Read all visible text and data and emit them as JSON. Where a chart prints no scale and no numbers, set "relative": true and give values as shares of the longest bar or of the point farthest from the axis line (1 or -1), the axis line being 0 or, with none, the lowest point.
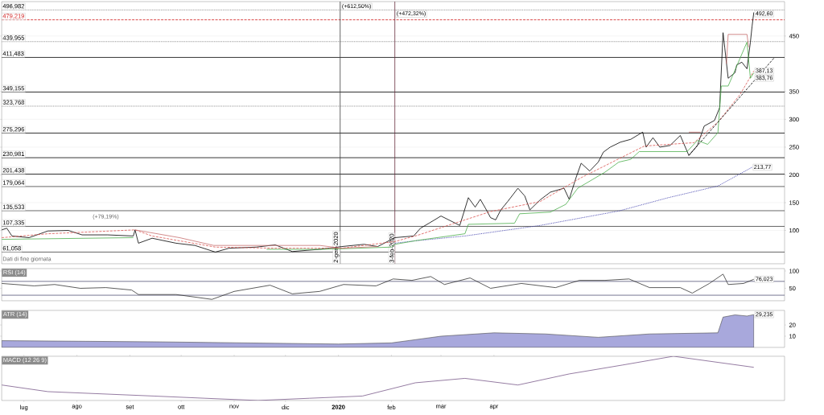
{
  "chart_data": [
    {
      "type": "line",
      "xlim": [
        "2019-06-18",
        "2020-09-18"
      ],
      "ylim": [
        40,
        512
      ],
      "yticks": [
        100,
        150,
        200,
        250,
        300,
        350,
        450
      ],
      "grid": "y",
      "tick_labels": "y",
      "series": [
        {
          "color": "#000000",
          "line_style": "solid",
          "x": [
            "2019-06-18",
            "2019-06-21",
            "2019-06-24",
            "2019-07-04",
            "2019-07-15",
            "2019-07-27",
            "2019-08-04",
            "2019-08-19",
            "2019-09-03",
            "2019-09-04",
            "2019-09-06",
            "2019-09-14",
            "2019-09-28",
            "2019-10-09",
            "2019-10-21",
            "2019-10-29",
            "2019-11-14",
            "2019-11-25",
            "2019-12-05",
            "2019-12-21",
            "2020-01-03",
            "2020-01-16",
            "2020-01-24",
            "2020-02-03",
            "2020-02-14",
            "2020-02-18",
            "2020-02-23",
            "2020-03-01",
            "2020-03-12",
            "2020-03-17",
            "2020-03-21",
            "2020-03-24",
            "2020-03-27",
            "2020-03-30",
            "2020-04-02",
            "2020-04-05",
            "2020-04-09",
            "2020-04-15",
            "2020-04-19",
            "2020-04-22",
            "2020-04-28",
            "2020-05-04",
            "2020-05-12",
            "2020-05-15",
            "2020-05-19",
            "2020-05-22",
            "2020-05-27",
            "2020-06-01",
            "2020-06-04",
            "2020-06-08",
            "2020-06-14",
            "2020-06-20",
            "2020-06-27",
            "2020-06-29",
            "2020-07-03",
            "2020-07-07",
            "2020-07-13",
            "2020-07-19",
            "2020-07-24",
            "2020-07-29",
            "2020-08-02",
            "2020-08-08",
            "2020-08-11",
            "2020-08-13",
            "2020-08-14",
            "2020-08-16",
            "2020-08-20",
            "2020-08-21",
            "2020-08-24",
            "2020-08-27",
            "2020-08-29",
            "2020-08-30",
            "2020-08-31"
          ],
          "values": [
            101,
            104,
            90,
            87,
            99,
            100,
            92,
            92,
            90,
            101,
            77,
            86,
            77,
            73,
            61,
            68,
            70,
            74,
            62,
            66,
            71,
            75,
            71,
            87,
            90,
            104,
            113,
            126,
            109,
            159,
            142,
            156,
            140,
            123,
            119,
            137,
            152,
            176,
            162,
            137,
            155,
            169,
            176,
            156,
            195,
            221,
            207,
            223,
            241,
            250,
            259,
            264,
            277,
            250,
            267,
            250,
            253,
            271,
            235,
            253,
            288,
            298,
            321,
            456,
            429,
            374,
            384,
            398,
            403,
            391,
            439,
            468,
            492.6
          ]
        },
        {
          "color": "#d9534f",
          "line_style": "dashed",
          "x": [
            "2019-06-18",
            "2019-07-15",
            "2019-09-04",
            "2019-09-14",
            "2019-10-21",
            "2019-11-25",
            "2020-01-03",
            "2020-02-03",
            "2020-02-16",
            "2020-03-30",
            "2020-04-28",
            "2020-05-22",
            "2020-06-28",
            "2020-07-27",
            "2020-08-10",
            "2020-08-23",
            "2020-08-31"
          ],
          "values": [
            87,
            94,
            101,
            90,
            70,
            68,
            68,
            80,
            91,
            134,
            152,
            195,
            252,
            258,
            295,
            345,
            387.13
          ]
        },
        {
          "color": "#3636a8",
          "line_style": "dotted",
          "x": [
            "2020-02-03",
            "2020-02-14",
            "2020-03-15",
            "2020-04-28",
            "2020-06-13",
            "2020-07-12",
            "2020-08-10",
            "2020-08-30"
          ],
          "values": [
            77,
            81,
            90,
            109,
            135,
            159,
            180,
            213.77
          ]
        },
        {
          "color": "#4cae4c",
          "line_style": "solid",
          "x": [
            "2019-06-18",
            "2019-09-03",
            "2019-09-04",
            "2019-11-20",
            "2019-12-21",
            "2020-01-03",
            "2020-02-01",
            "2020-02-03",
            "2020-02-16",
            "2020-03-15",
            "2020-03-17",
            "2020-04-13",
            "2020-04-16",
            "2020-05-04",
            "2020-05-13",
            "2020-05-20",
            "2020-06-05",
            "2020-06-13",
            "2020-06-20",
            "2020-06-25",
            "2020-07-23",
            "2020-07-29",
            "2020-08-04",
            "2020-08-10",
            "2020-08-12",
            "2020-08-16",
            "2020-08-27",
            "2020-08-29",
            "2020-08-31"
          ],
          "values": [
            84,
            87,
            null,
            66,
            66,
            67,
            70,
            75,
            82,
            94,
            111,
            113,
            130,
            133,
            147,
            176,
            205,
            223,
            228,
            242,
            242,
            262,
            255,
            276,
            360,
            360,
            439,
            374,
            383.76
          ]
        },
        {
          "color": "#c87070",
          "line_style": "solid",
          "x": [
            "2019-09-04",
            "2019-09-30",
            "2019-10-20",
            "2019-12-21",
            "2020-01-03",
            "2020-01-24",
            "2020-01-25",
            "2020-07-24",
            "2020-07-31",
            "2020-08-01",
            "2020-08-15",
            "2020-08-16",
            "2020-08-27",
            "2020-08-28"
          ],
          "values": [
            101,
            87,
            73,
            73,
            68,
            71,
            null,
            277,
            277,
            null,
            400,
            453,
            453,
            430
          ]
        },
        {
          "color": "#000000",
          "line_style": "dashed",
          "x": [
            "2020-07-24",
            "2020-09-12"
          ],
          "values": [
            235,
            411
          ]
        }
      ],
      "ref_lines": [
        {
          "axis": "y",
          "value": 496.982,
          "label": "496,982",
          "color": "#808080",
          "line_style": "dotted"
        },
        {
          "axis": "y",
          "value": 479.219,
          "label": "479,219",
          "color": "#d02020",
          "line_style": "dashed"
        },
        {
          "axis": "y",
          "value": 439.955,
          "label": "439,955",
          "color": "#808080",
          "line_style": "dotted"
        },
        {
          "axis": "y",
          "value": 411.483,
          "label": "411,483",
          "color": "#000000",
          "line_style": "solid"
        },
        {
          "axis": "y",
          "value": 349.155,
          "label": "349,155",
          "color": "#000000",
          "line_style": "solid"
        },
        {
          "axis": "y",
          "value": 323.768,
          "label": "323,768",
          "color": "#808080",
          "line_style": "dotted"
        },
        {
          "axis": "y",
          "value": 275.296,
          "label": "275,296",
          "color": "#000000",
          "line_style": "solid"
        },
        {
          "axis": "y",
          "value": 230.981,
          "label": "230,981",
          "color": "#000000",
          "line_style": "solid"
        },
        {
          "axis": "y",
          "value": 201.438,
          "label": "201,438",
          "color": "#000000",
          "line_style": "solid"
        },
        {
          "axis": "y",
          "value": 179.064,
          "label": "179,064",
          "color": "#404040",
          "line_style": "solid"
        },
        {
          "axis": "y",
          "value": 135.533,
          "label": "135,533",
          "color": "#404040",
          "line_style": "solid"
        },
        {
          "axis": "y",
          "value": 107.335,
          "label": "107,335",
          "color": "#404040",
          "line_style": "solid"
        },
        {
          "axis": "y",
          "value": 61.058,
          "label": "61,058",
          "color": "#404040",
          "line_style": "solid"
        },
        {
          "axis": "x",
          "value": "2020-01-02",
          "label": "2-gen-2020",
          "color": "#404040",
          "line_style": "solid"
        },
        {
          "axis": "x",
          "value": "2020-02-03",
          "label": "3-feb-2020",
          "color": "#6a3040",
          "line_style": "solid"
        }
      ],
      "annotations": [
        {
          "text": "(+612,50%)",
          "x": "2020-01-02",
          "y": 503
        },
        {
          "text": "(+472,32%)",
          "x": "2020-02-03",
          "y": 503
        },
        {
          "text": "492,60",
          "x": "2020-08-31",
          "y": 492.6
        },
        {
          "text": "387,13",
          "x": "2020-08-31",
          "y": 387.13
        },
        {
          "text": "383,76",
          "x": "2020-08-31",
          "y": 383.76
        },
        {
          "text": "213,77",
          "x": "2020-08-30",
          "y": 213.77
        },
        "(+79,19%)",
        "Dati di fine giornata"
      ]
    },
    {
      "type": "line",
      "title": "RSI (14)",
      "xlim": [
        "2019-06-18",
        "2020-09-18"
      ],
      "ylim": [
        14,
        107
      ],
      "yticks": [
        50,
        100
      ],
      "tick_labels": "y",
      "x": [
        "2019-06-18",
        "2019-07-07",
        "2019-07-19",
        "2019-08-03",
        "2019-08-18",
        "2019-09-02",
        "2019-09-06",
        "2019-09-28",
        "2019-10-19",
        "2019-11-01",
        "2019-11-22",
        "2019-12-05",
        "2019-12-21",
        "2020-01-04",
        "2020-01-23",
        "2020-02-02",
        "2020-02-13",
        "2020-02-24",
        "2020-03-03",
        "2020-03-18",
        "2020-03-30",
        "2020-04-17",
        "2020-05-07",
        "2020-05-21",
        "2020-06-05",
        "2020-06-19",
        "2020-07-01",
        "2020-07-19",
        "2020-07-26",
        "2020-08-05",
        "2020-08-13",
        "2020-08-16",
        "2020-08-25",
        "2020-08-31"
      ],
      "series": [
        {
          "color": "#333333",
          "values": [
            64,
            57,
            61,
            50,
            52,
            45,
            32,
            32,
            18,
            41,
            59,
            34,
            41,
            61,
            57,
            77,
            73,
            84,
            61,
            80,
            50,
            64,
            52,
            73,
            73,
            77,
            52,
            52,
            36,
            64,
            91,
            61,
            64,
            76.023
          ]
        }
      ],
      "ref_lines": [
        {
          "axis": "y",
          "value": 70,
          "color": "#555577"
        },
        {
          "axis": "y",
          "value": 30,
          "color": "#555577"
        }
      ],
      "annotations": [
        {
          "text": "76,023",
          "x": "2020-08-31",
          "y": 76.023
        }
      ]
    },
    {
      "type": "area",
      "title": "ATR (14)",
      "xlim": [
        "2019-06-18",
        "2020-09-18"
      ],
      "ylim": [
        0,
        33
      ],
      "yticks": [
        10,
        20
      ],
      "tick_labels": "y",
      "x": [
        "2019-06-18",
        "2019-09-15",
        "2020-01-01",
        "2020-02-01",
        "2020-03-01",
        "2020-04-01",
        "2020-05-01",
        "2020-06-01",
        "2020-07-01",
        "2020-08-10",
        "2020-08-13",
        "2020-08-20",
        "2020-08-27",
        "2020-08-31"
      ],
      "series": [
        {
          "color": "#a8a8dc",
          "values": [
            6,
            5,
            3,
            4,
            10,
            13,
            12,
            9,
            12,
            13,
            27,
            29,
            28,
            29.235
          ]
        }
      ],
      "annotations": [
        {
          "text": "29,235",
          "x": "2020-08-31",
          "y": 29.235
        }
      ]
    },
    {
      "type": "line",
      "title": "MACD (12 26 9)",
      "relative": true,
      "xlim": [
        "2019-06-18",
        "2020-09-18"
      ],
      "tick_labels": "x",
      "xticks": [
        {
          "value": "2019-07-01",
          "label": "lug"
        },
        {
          "value": "2019-08-01",
          "label": "ago"
        },
        {
          "value": "2019-09-01",
          "label": "set"
        },
        {
          "value": "2019-10-01",
          "label": "ott"
        },
        {
          "value": "2019-11-01",
          "label": "nov"
        },
        {
          "value": "2019-12-01",
          "label": "dic"
        },
        {
          "value": "2020-01-01",
          "label": "**2020**"
        },
        {
          "value": "2020-02-01",
          "label": "feb"
        },
        {
          "value": "2020-03-01",
          "label": "mar"
        },
        {
          "value": "2020-04-01",
          "label": "apr"
        }
      ],
      "x": [
        "2019-06-18",
        "2019-07-15",
        "2019-08-15",
        "2019-09-15",
        "2019-10-15",
        "2019-11-15",
        "2019-12-15",
        "2020-01-15",
        "2020-02-15",
        "2020-03-15",
        "2020-04-15",
        "2020-05-15",
        "2020-06-15",
        "2020-07-15",
        "2020-08-31"
      ],
      "series": [
        {
          "color": "#7a5a8a",
          "values": [
            0.35,
            0.2,
            0.15,
            0.1,
            0.05,
            0,
            0.05,
            0.1,
            0.4,
            0.5,
            0.35,
            0.6,
            0.8,
            1.0,
            0.75
          ]
        }
      ]
    }
  ]
}
